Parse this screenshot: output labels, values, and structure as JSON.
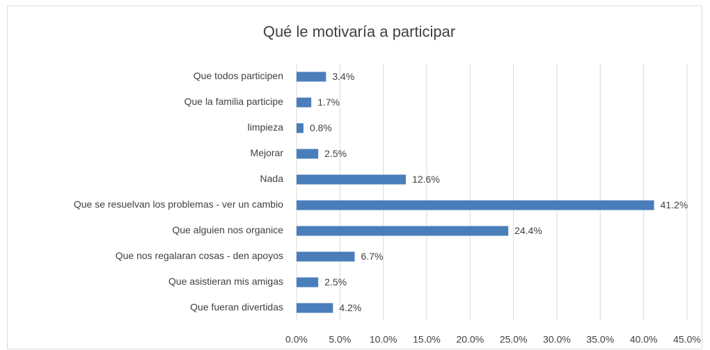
{
  "chart_data": {
    "type": "bar",
    "title": "Qué le motivaría a participar",
    "categories": [
      "Que todos participen",
      "Que la familia participe",
      "limpieza",
      "Mejorar",
      "Nada",
      "Que se resuelvan los problemas - ver un cambio",
      "Que alguien nos organice",
      "Que nos regalaran cosas - den apoyos",
      "Que asistieran mis amigas",
      "Que fueran divertidas"
    ],
    "values": [
      3.4,
      1.7,
      0.8,
      2.5,
      12.6,
      41.2,
      24.4,
      6.7,
      2.5,
      4.2
    ],
    "value_labels": [
      "3.4%",
      "1.7%",
      "0.8%",
      "2.5%",
      "12.6%",
      "41.2%",
      "24.4%",
      "6.7%",
      "2.5%",
      "4.2%"
    ],
    "color": "#4a7ebb",
    "xlim": [
      0,
      45
    ],
    "xticks": [
      {
        "value": 0,
        "label": "0.0%"
      },
      {
        "value": 5,
        "label": "5.0%"
      },
      {
        "value": 10,
        "label": "10.0%"
      },
      {
        "value": 15,
        "label": "15.0%"
      },
      {
        "value": 20,
        "label": "20.0%"
      },
      {
        "value": 25,
        "label": "25.0%"
      },
      {
        "value": 30,
        "label": "30.0%"
      },
      {
        "value": 35,
        "label": "35.0%"
      },
      {
        "value": 40,
        "label": "40.0%"
      },
      {
        "value": 45,
        "label": "45.0%"
      }
    ],
    "grid": true
  }
}
